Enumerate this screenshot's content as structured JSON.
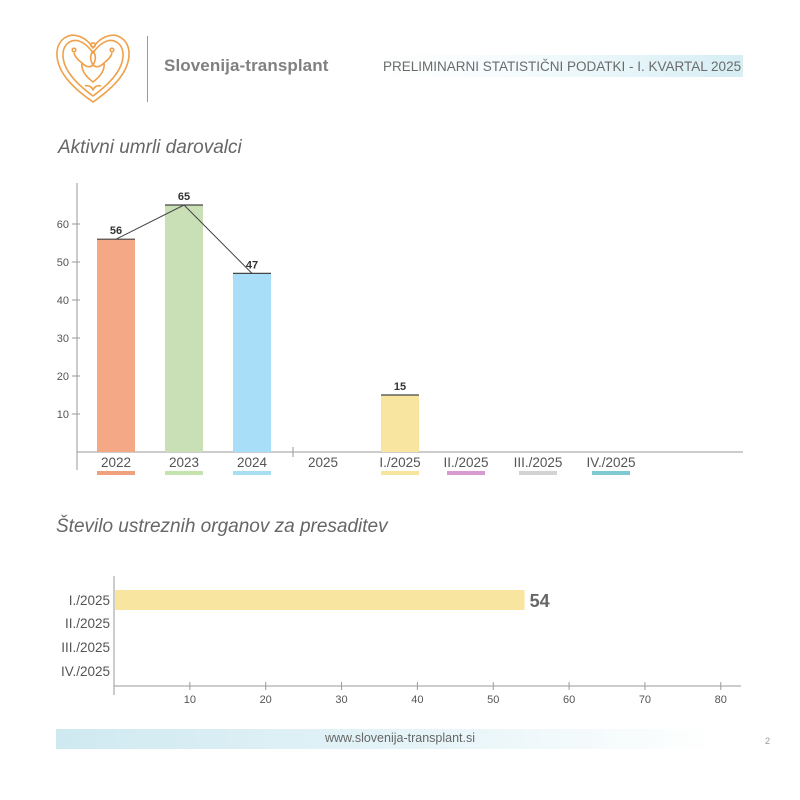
{
  "header": {
    "brand": "Slovenija-transplant",
    "title": "PRELIMINARNI STATISTIČNI PODATKI - I. KVARTAL 2025",
    "logo_icon": "heart-tulip-logo-icon",
    "logo_color": "#F0A04A"
  },
  "footer": {
    "url": "www.slovenija-transplant.si",
    "page": "2"
  },
  "chart_data": [
    {
      "type": "bar",
      "title": "Aktivni umrli darovalci",
      "categories": [
        "2022",
        "2023",
        "2024",
        "2025",
        "I./2025",
        "II./2025",
        "III./2025",
        "IV./2025"
      ],
      "values": [
        56,
        65,
        47,
        null,
        15,
        null,
        null,
        null
      ],
      "data_labels": [
        "56",
        "65",
        "47",
        "",
        "15",
        "",
        "",
        ""
      ],
      "colors": [
        "#F4A886",
        "#C9E0B7",
        "#A8DEF8",
        null,
        "#F8E6A0",
        null,
        null,
        null
      ],
      "legend_swatches": [
        "#F0A07C",
        "#C4E3AE",
        "#A8DEF2",
        null,
        "#F7E59E",
        "#D89BD0",
        "#D3D3D3",
        "#7FC9D3"
      ],
      "trend_line": [
        "2022",
        "2023",
        "2024"
      ],
      "ylim": [
        0,
        70
      ],
      "yticks": [
        "10",
        "20",
        "30",
        "40",
        "50",
        "60"
      ],
      "xlabel": "",
      "ylabel": ""
    },
    {
      "type": "bar",
      "orientation": "horizontal",
      "title": "Število ustreznih organov za presaditev",
      "categories": [
        "I./2025",
        "II./2025",
        "III./2025",
        "IV./2025"
      ],
      "values": [
        54,
        null,
        null,
        null
      ],
      "data_labels": [
        "54",
        "",
        "",
        ""
      ],
      "color": "#F8E6A0",
      "xlim": [
        0,
        82
      ],
      "xticks": [
        "10",
        "20",
        "30",
        "40",
        "50",
        "60",
        "70",
        "80"
      ],
      "xlabel": "",
      "ylabel": ""
    }
  ]
}
